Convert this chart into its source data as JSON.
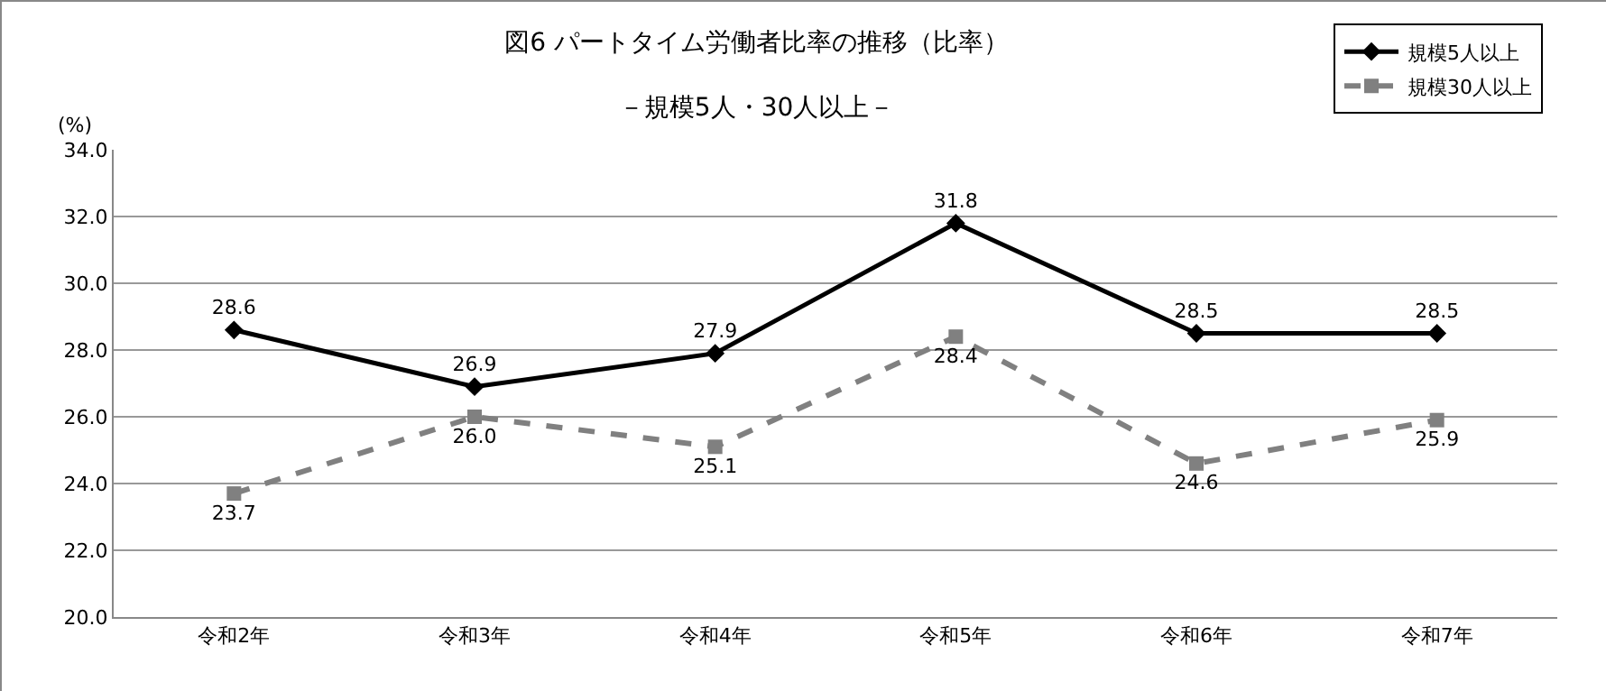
{
  "chart_data": {
    "type": "line",
    "title": "図6 パートタイム労働者比率の推移（比率）",
    "subtitle": "－規模5人・30人以上－",
    "ylabel": "(%)",
    "categories": [
      "令和2年",
      "令和3年",
      "令和4年",
      "令和5年",
      "令和6年",
      "令和7年"
    ],
    "series": [
      {
        "name": "規模5人以上",
        "color": "#000000",
        "marker": "diamond",
        "line_style": "solid",
        "values": [
          28.6,
          26.9,
          27.9,
          31.8,
          28.5,
          28.5
        ],
        "value_labels": [
          "28.6",
          "26.9",
          "27.9",
          "31.8",
          "28.5",
          "28.5"
        ]
      },
      {
        "name": "規模30人以上",
        "color": "#808080",
        "marker": "square",
        "line_style": "dashed",
        "values": [
          23.7,
          26.0,
          25.1,
          28.4,
          24.6,
          25.9
        ],
        "value_labels": [
          "23.7",
          "26.0",
          "25.1",
          "28.4",
          "24.6",
          "25.9"
        ]
      }
    ],
    "ylim": [
      20,
      34
    ],
    "yticks": [
      {
        "value": 20,
        "label": "20.0"
      },
      {
        "value": 22,
        "label": "22.0"
      },
      {
        "value": 24,
        "label": "24.0"
      },
      {
        "value": 26,
        "label": "26.0"
      },
      {
        "value": 28,
        "label": "28.0"
      },
      {
        "value": 30,
        "label": "30.0"
      },
      {
        "value": 32,
        "label": "32.0"
      },
      {
        "value": 34,
        "label": "34.0"
      }
    ],
    "grid": "y",
    "legend": "top right"
  }
}
